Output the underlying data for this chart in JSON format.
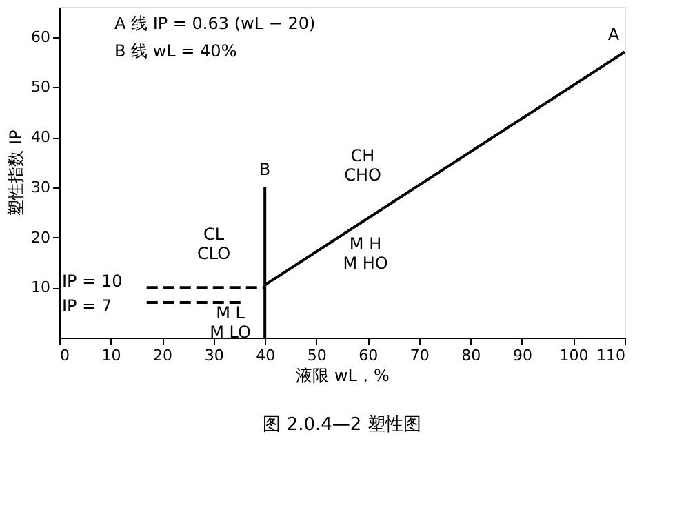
{
  "chart_data": {
    "type": "line",
    "title": "图 2.0.4—2  塑性图",
    "xlabel": "液限 wL，%",
    "ylabel": "塑性指数 IP",
    "xlim": [
      0,
      110
    ],
    "ylim": [
      0,
      66
    ],
    "xticks": [
      0,
      10,
      20,
      30,
      40,
      50,
      60,
      70,
      80,
      90,
      100,
      110
    ],
    "yticks": [
      10,
      20,
      30,
      40,
      50,
      60
    ],
    "grid": false,
    "marker": "none",
    "series": [
      {
        "x": [
          40,
          110
        ],
        "values": [
          10.5,
          57
        ],
        "color": "#000000",
        "line_style": "solid"
      },
      {
        "x": [
          40,
          40
        ],
        "values": [
          0,
          30
        ],
        "color": "#000000",
        "line_style": "solid"
      },
      {
        "x": [
          17,
          40
        ],
        "values": [
          10,
          10
        ],
        "color": "#000000",
        "line_style": "dashed"
      },
      {
        "x": [
          17,
          36
        ],
        "values": [
          7,
          7
        ],
        "color": "#000000",
        "line_style": "dashed"
      }
    ],
    "annotations": [
      "A 线    IP = 0.63 (wL − 20)",
      "B 线    wL = 40%",
      "A",
      "B",
      "IP = 10",
      "IP = 7",
      "CL\nCLO",
      "CH\nCHO",
      "M H\nM HO",
      "M L\nM LO"
    ]
  }
}
